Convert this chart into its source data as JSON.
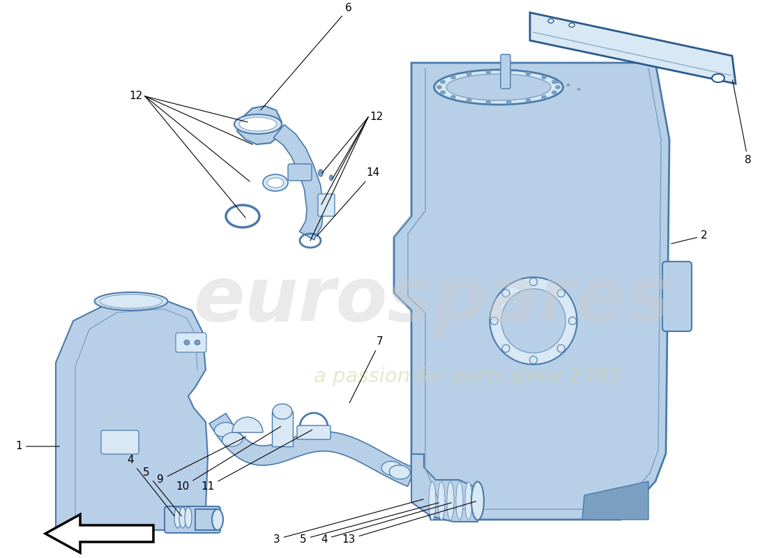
{
  "bg_color": "#ffffff",
  "fill": "#b8cfe8",
  "edge": "#4a7aaa",
  "dark": "#7a9fc0",
  "light": "#d8e8f5",
  "edge2": "#2a5a8a",
  "label_fs": 11,
  "leader_lw": 0.8,
  "part_lw": 1.5,
  "watermark1": "eurospares",
  "watermark2": "a passion for parts since 1985"
}
